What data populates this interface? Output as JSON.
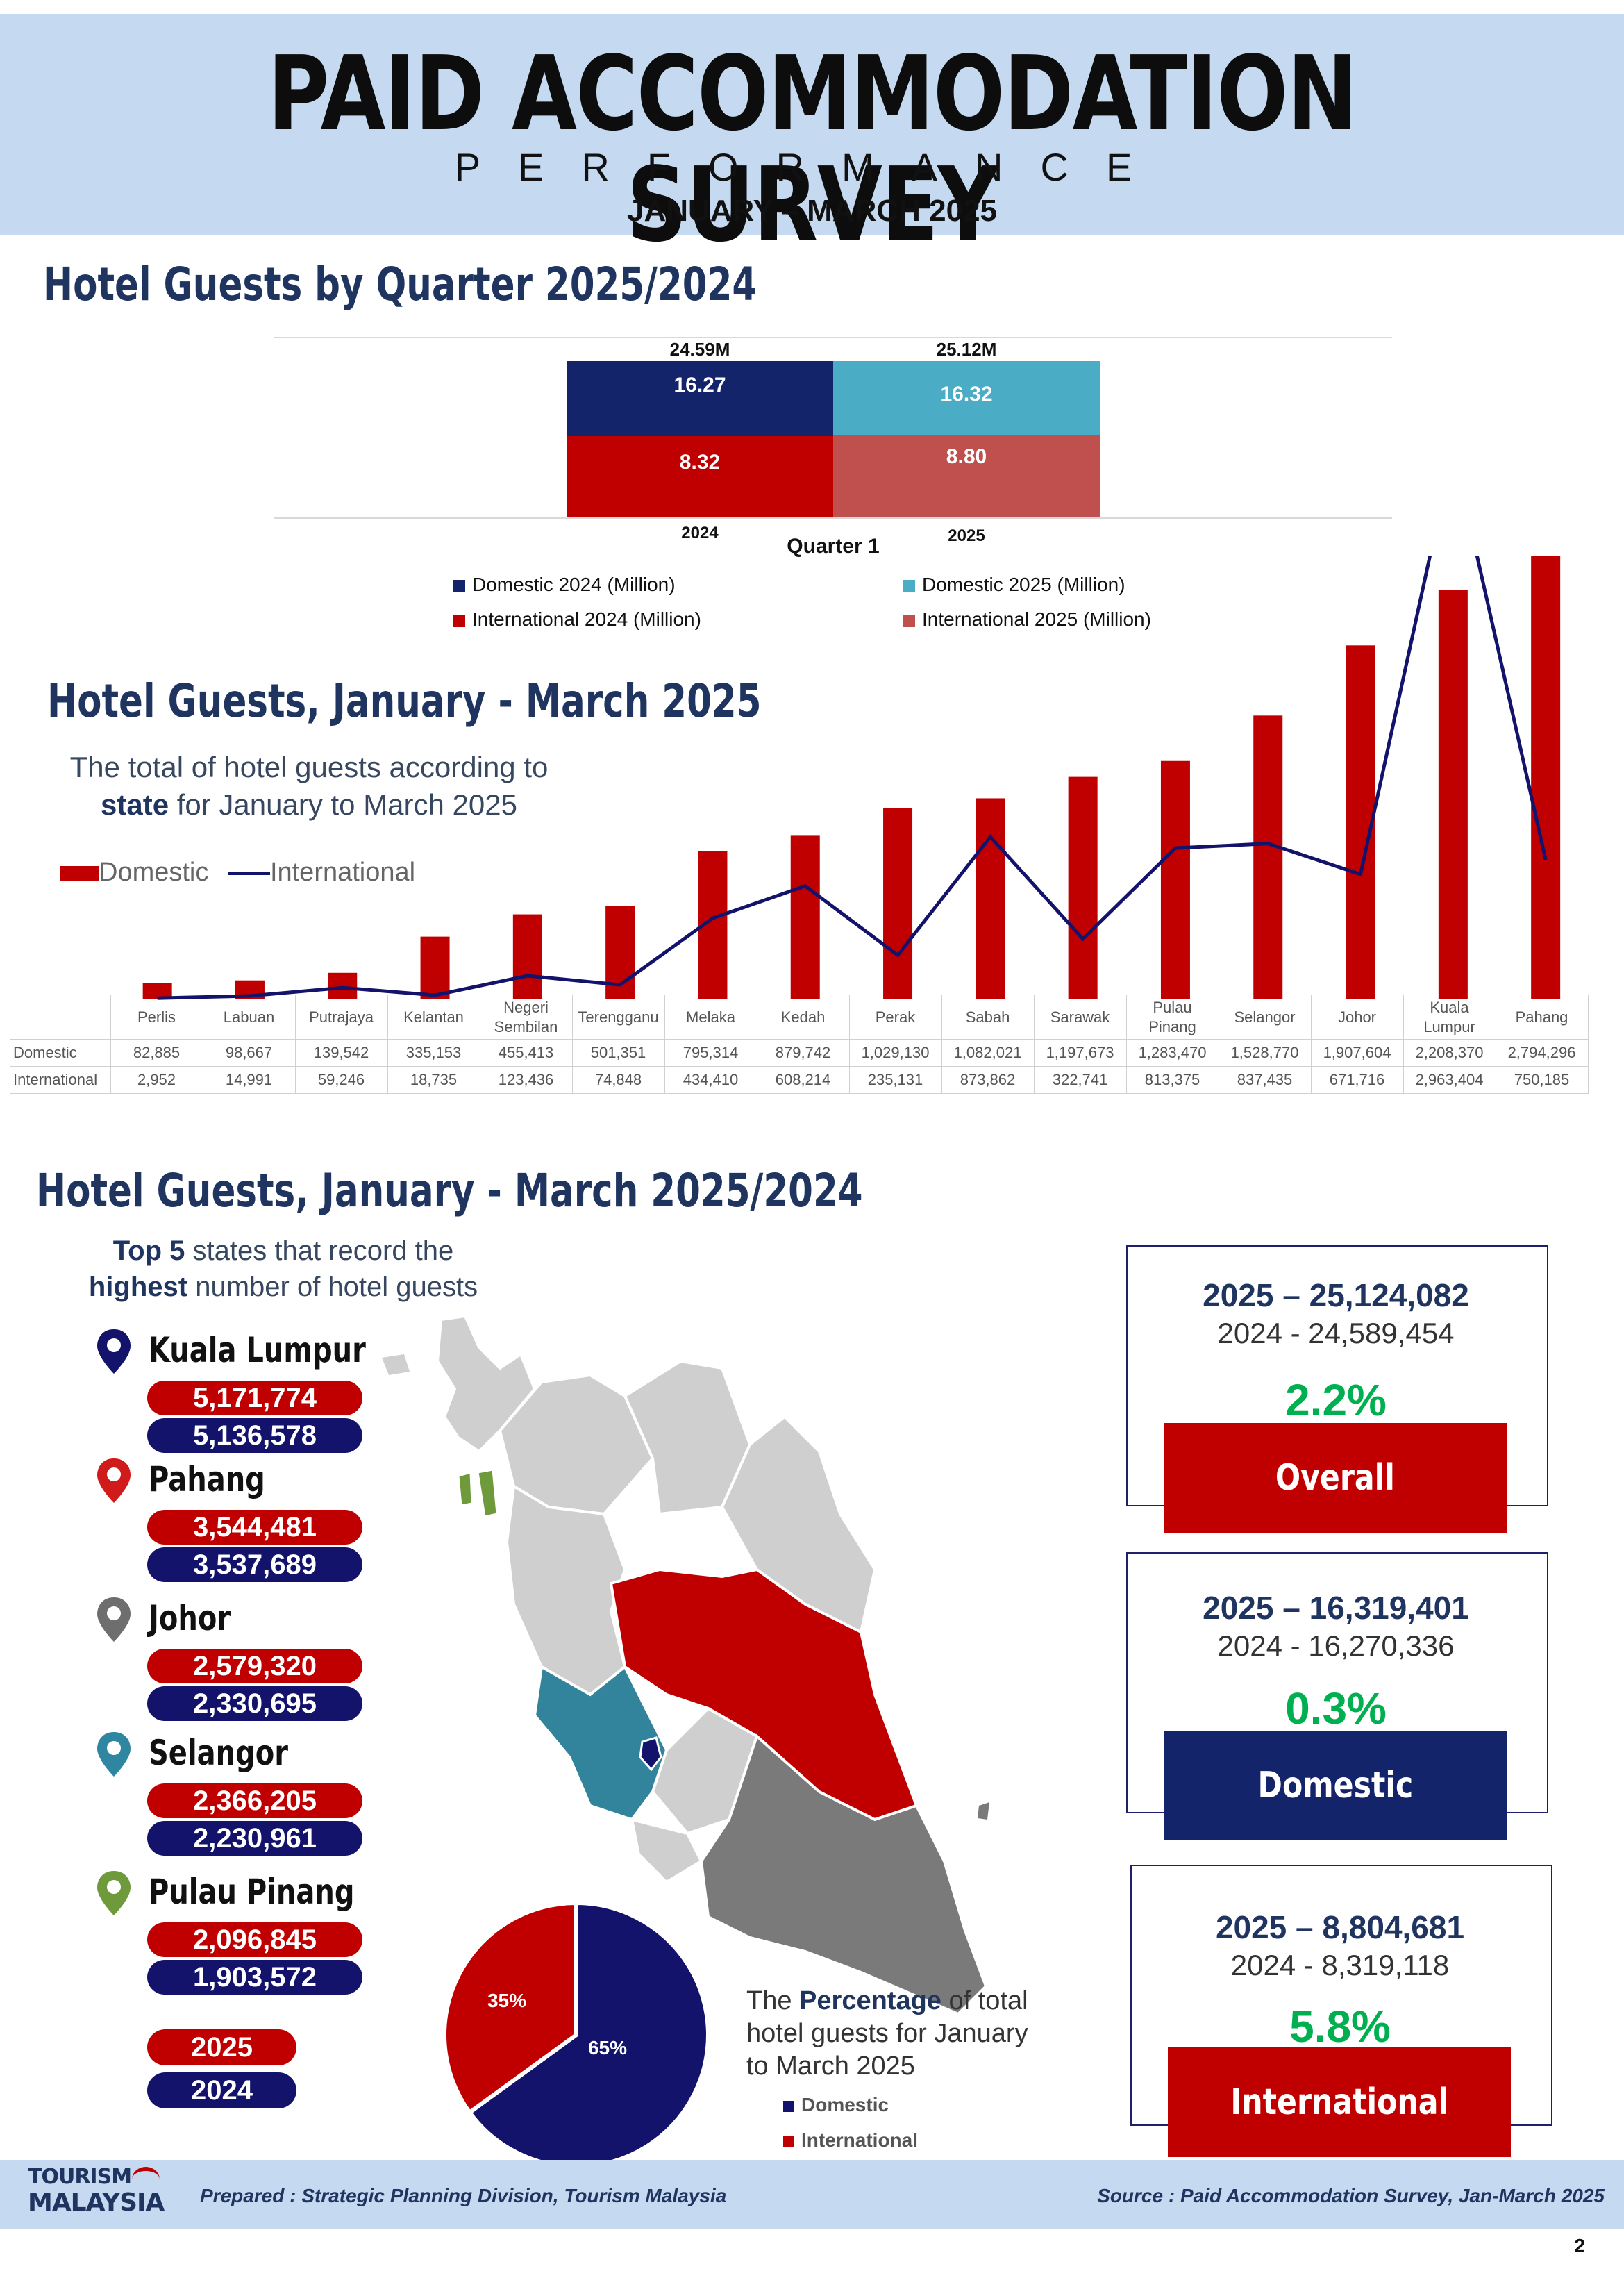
{
  "header": {
    "title": "PAID ACCOMMODATION SURVEY",
    "subtitle": "PERFORMANCE",
    "period": "JANUARY – MARCH 2025"
  },
  "section1": {
    "title": "Hotel Guests by Quarter 2025/2024",
    "total_2024": "24.59M",
    "total_2025": "25.12M",
    "dom_2024": "16.27",
    "intl_2024": "8.32",
    "dom_2025": "16.32",
    "intl_2025": "8.80",
    "year_2024": "2024",
    "year_2025": "2025",
    "axis_label": "Quarter 1",
    "legend": {
      "dom2024": "Domestic 2024 (Million)",
      "dom2025": "Domestic 2025 (Million)",
      "intl2024": "International 2024 (Million)",
      "intl2025": "International 2025 (Million)"
    }
  },
  "section2": {
    "title": "Hotel Guests, January - March 2025",
    "desc_line1": "The total of hotel guests according to",
    "desc_bold": "state",
    "desc_line2_rest": " for January to March 2025",
    "legend_domestic": "Domestic",
    "legend_international": "International",
    "row_label_domestic": "Domestic",
    "row_label_international": "International",
    "state_labels": [
      [
        "Perlis"
      ],
      [
        "Labuan"
      ],
      [
        "Putrajaya"
      ],
      [
        "Kelantan"
      ],
      [
        "Negeri",
        "Sembilan"
      ],
      [
        "Terengganu"
      ],
      [
        "Melaka"
      ],
      [
        "Kedah"
      ],
      [
        "Perak"
      ],
      [
        "Sabah"
      ],
      [
        "Sarawak"
      ],
      [
        "Pulau",
        "Pinang"
      ],
      [
        "Selangor"
      ],
      [
        "Johor"
      ],
      [
        "Kuala",
        "Lumpur"
      ],
      [
        "Pahang"
      ]
    ],
    "domestic_text": [
      "82,885",
      "98,667",
      "139,542",
      "335,153",
      "455,413",
      "501,351",
      "795,314",
      "879,742",
      "1,029,130",
      "1,082,021",
      "1,197,673",
      "1,283,470",
      "1,528,770",
      "1,907,604",
      "2,208,370",
      "2,794,296"
    ],
    "international_text": [
      "2,952",
      "14,991",
      "59,246",
      "18,735",
      "123,436",
      "74,848",
      "434,410",
      "608,214",
      "235,131",
      "873,862",
      "322,741",
      "813,375",
      "837,435",
      "671,716",
      "2,963,404",
      "750,185"
    ]
  },
  "section3": {
    "title": "Hotel Guests, January - March 2025/2024",
    "intro_bold1": "Top 5",
    "intro_rest1": " states that record the",
    "intro_bold2": "highest",
    "intro_rest2": " number of hotel guests",
    "states": [
      {
        "name": "Kuala Lumpur",
        "v2025": "5,171,774",
        "v2024": "5,136,578",
        "color": "#13136b"
      },
      {
        "name": "Pahang",
        "v2025": "3,544,481",
        "v2024": "3,537,689",
        "color": "#d11a1a"
      },
      {
        "name": "Johor",
        "v2025": "2,579,320",
        "v2024": "2,330,695",
        "color": "#6e6e6e"
      },
      {
        "name": "Selangor",
        "v2025": "2,366,205",
        "v2024": "2,230,961",
        "color": "#2e86a0"
      },
      {
        "name": "Pulau Pinang",
        "v2025": "2,096,845",
        "v2024": "1,903,572",
        "color": "#6f9a3c"
      }
    ],
    "legend_2025": "2025",
    "legend_2024": "2024",
    "pie": {
      "domestic_pct_label": "65%",
      "international_pct_label": "35%",
      "desc_pre": "The ",
      "desc_bold": "Percentage",
      "desc_post": " of total",
      "desc_line2": "hotel guests for January",
      "desc_line3": "to March 2025",
      "legend_domestic": "Domestic",
      "legend_international": "International"
    },
    "boxes": [
      {
        "line1": "2025 – 25,124,082",
        "line2": "2024  -  24,589,454",
        "pct": "2.2%",
        "tag": "Overall"
      },
      {
        "line1": "2025 – 16,319,401",
        "line2": "2024  -   16,270,336",
        "pct": "0.3%",
        "tag": "Domestic"
      },
      {
        "line1": "2025 – 8,804,681",
        "line2": "2024  -  8,319,118",
        "pct": "5.8%",
        "tag": "International"
      }
    ]
  },
  "footer": {
    "logo_line1": "TOURISM",
    "logo_line2": "MALAYSIA",
    "prepared": "Prepared : Strategic Planning Division, Tourism Malaysia",
    "source": "Source : Paid Accommodation Survey, Jan-March 2025",
    "page": "2"
  },
  "colors": {
    "navy": "#13136b",
    "red": "#c00000",
    "teal": "#4bacc6",
    "light_red": "#c0504d",
    "green": "#00b050",
    "header_bg": "#c5d9f0"
  },
  "chart_data": [
    {
      "type": "bar",
      "title": "Hotel Guests by Quarter 2025/2024",
      "categories": [
        "2024",
        "2025"
      ],
      "xlabel": "Quarter 1",
      "stacked": true,
      "series": [
        {
          "name": "Domestic 2024 (Million)",
          "values": [
            16.27,
            null
          ]
        },
        {
          "name": "International 2024 (Million)",
          "values": [
            8.32,
            null
          ]
        },
        {
          "name": "Domestic 2025 (Million)",
          "values": [
            null,
            16.32
          ]
        },
        {
          "name": "International 2025 (Million)",
          "values": [
            null,
            8.8
          ]
        }
      ],
      "totals": [
        24.59,
        25.12
      ]
    },
    {
      "type": "bar",
      "title": "Hotel Guests, January - March 2025",
      "categories": [
        "Perlis",
        "Labuan",
        "Putrajaya",
        "Kelantan",
        "Negeri Sembilan",
        "Terengganu",
        "Melaka",
        "Kedah",
        "Perak",
        "Sabah",
        "Sarawak",
        "Pulau Pinang",
        "Selangor",
        "Johor",
        "Kuala Lumpur",
        "Pahang"
      ],
      "series": [
        {
          "name": "Domestic",
          "type": "bar",
          "values": [
            82885,
            98667,
            139542,
            335153,
            455413,
            501351,
            795314,
            879742,
            1029130,
            1082021,
            1197673,
            1283470,
            1528770,
            1907604,
            2208370,
            2794296
          ]
        },
        {
          "name": "International",
          "type": "line",
          "values": [
            2952,
            14991,
            59246,
            18735,
            123436,
            74848,
            434410,
            608214,
            235131,
            873862,
            322741,
            813375,
            837435,
            671716,
            2963404,
            750185
          ]
        }
      ],
      "ylim": [
        0,
        3000000
      ]
    },
    {
      "type": "pie",
      "labels": [
        "Domestic",
        "International"
      ],
      "values": [
        65,
        35
      ]
    }
  ]
}
